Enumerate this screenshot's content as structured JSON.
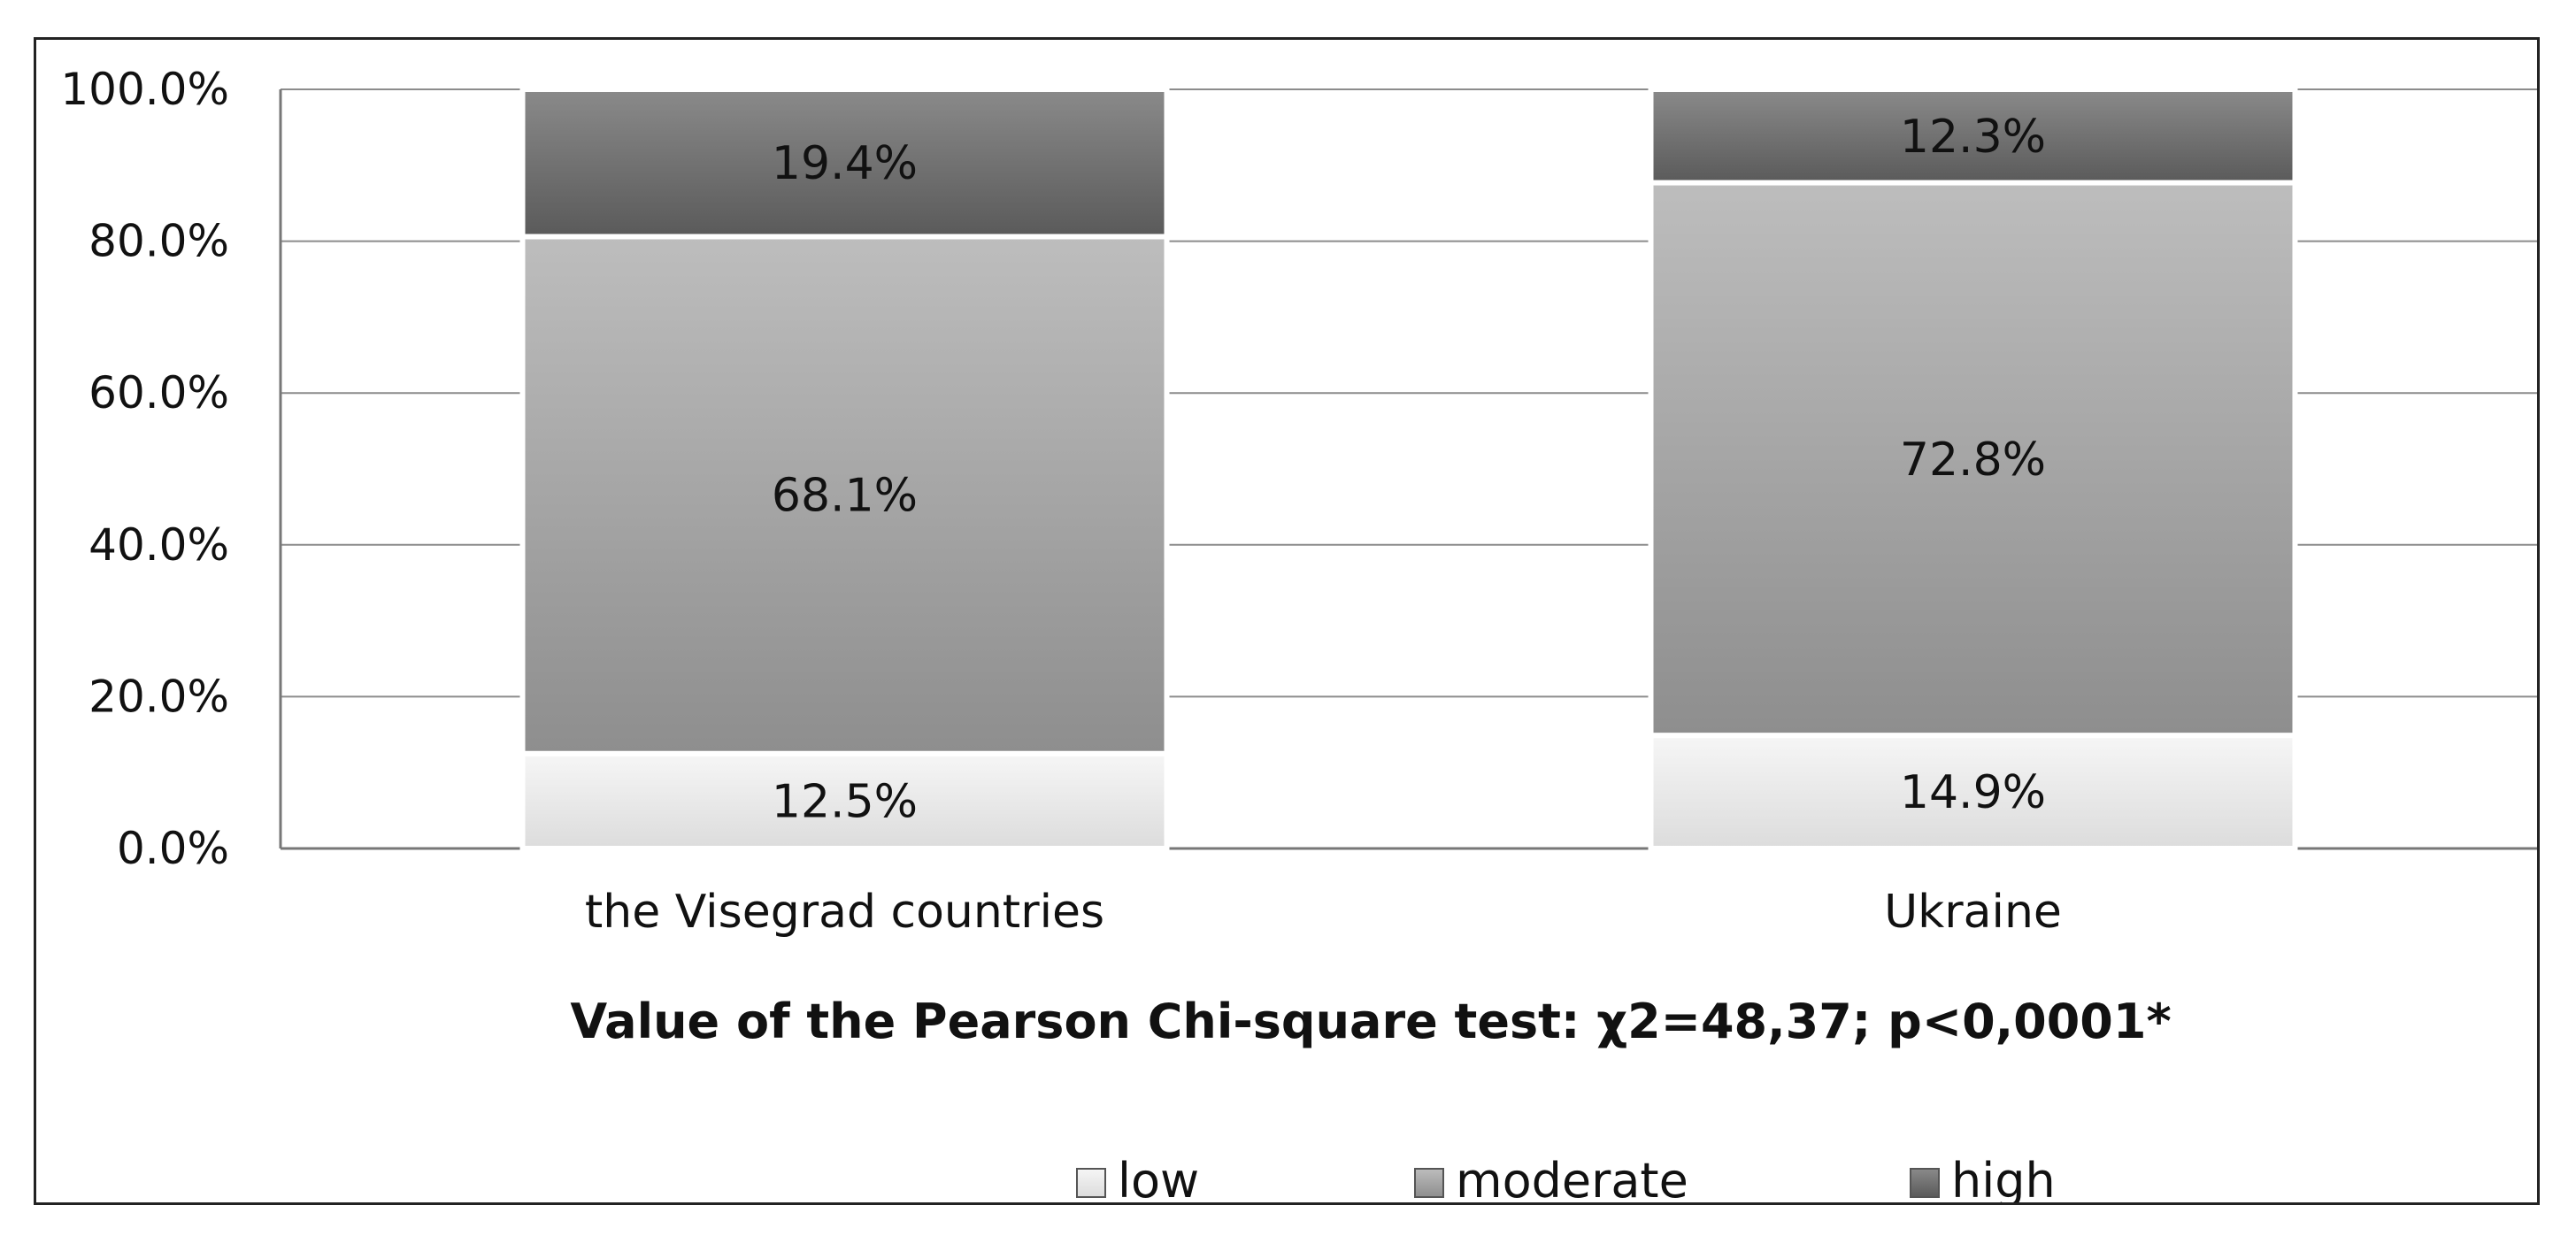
{
  "chart_data": {
    "type": "bar",
    "stacked": true,
    "categories": [
      "the Visegrad countries",
      "Ukraine"
    ],
    "series": [
      {
        "name": "low",
        "values": [
          12.5,
          14.9
        ],
        "color": "#e8e8e8"
      },
      {
        "name": "moderate",
        "values": [
          68.1,
          72.8
        ],
        "color": "#9f9f9f"
      },
      {
        "name": "high",
        "values": [
          19.4,
          12.3
        ],
        "color": "#6c6c6c"
      }
    ],
    "data_labels": [
      [
        "12.5%",
        "14.9%"
      ],
      [
        "68.1%",
        "72.8%"
      ],
      [
        "19.4%",
        "12.3%"
      ]
    ],
    "y_ticks": [
      "0.0%",
      "20.0%",
      "40.0%",
      "60.0%",
      "80.0%",
      "100.0%"
    ],
    "ylim": [
      0,
      100
    ],
    "grid": true,
    "legend": {
      "position": "bottom",
      "entries": [
        "low",
        "moderate",
        "high"
      ]
    },
    "annotation": "Value of the Pearson Chi-square test: χ2=48,37; p<0,0001*",
    "title": "",
    "xlabel": "",
    "ylabel": ""
  }
}
